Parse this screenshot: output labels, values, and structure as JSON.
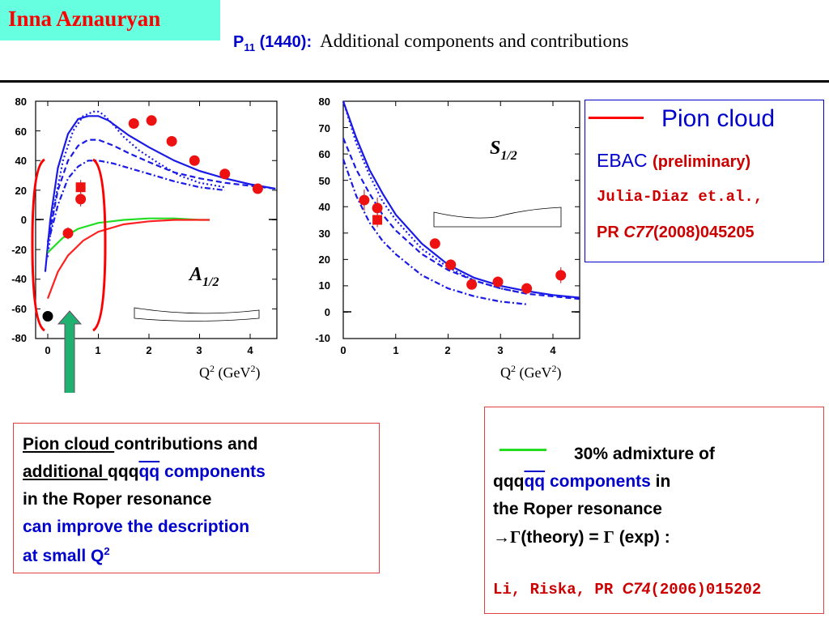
{
  "header": {
    "author": "Inna Aznauryan",
    "state": "P",
    "state_sub": "11",
    "state_mass": " (1440):",
    "title": "Additional components and contributions"
  },
  "colors": {
    "accent_cyan": "#66ffe0",
    "red": "#ff0000",
    "blue": "#0000cc",
    "green": "#22dd22",
    "rule": "#000000"
  },
  "chart_data": [
    {
      "type": "line",
      "amplitude_label": "A",
      "amplitude_sub": "1/2",
      "xlabel": "Q",
      "xlabel_unit": "(GeV",
      "xlim": [
        -0.25,
        4.6
      ],
      "ylim": [
        -80,
        80
      ],
      "xticks": [
        "0",
        "1",
        "2",
        "3",
        "4"
      ],
      "yticks": [
        "80",
        "60",
        "40",
        "20",
        "0",
        "-20",
        "-40",
        "-60",
        "-80"
      ],
      "series": [
        {
          "name": "Pion cloud",
          "style": "solid",
          "color": "#1a1ae6",
          "x": [
            -0.05,
            0.05,
            0.2,
            0.4,
            0.6,
            0.8,
            1.0,
            1.2,
            1.4,
            1.6,
            2.0,
            2.5,
            3.0,
            3.5,
            4.0,
            4.5
          ],
          "y": [
            -35,
            0,
            35,
            58,
            68,
            70,
            70,
            67,
            62,
            57,
            49,
            40,
            33,
            28,
            24,
            21
          ]
        },
        {
          "style": "dotted",
          "color": "#1a1ae6",
          "x": [
            0.0,
            0.1,
            0.3,
            0.5,
            0.7,
            0.9,
            1.0,
            1.1,
            1.3,
            1.5,
            1.8,
            2.2,
            2.6,
            3.0,
            3.5
          ],
          "y": [
            -25,
            5,
            40,
            60,
            70,
            73,
            73,
            71,
            64,
            56,
            47,
            38,
            30,
            25,
            22
          ]
        },
        {
          "style": "dashed",
          "color": "#1a1ae6",
          "x": [
            0.0,
            0.2,
            0.4,
            0.6,
            0.8,
            1.0,
            1.3,
            1.6,
            2.0,
            2.5,
            3.0,
            3.5,
            4.0,
            4.5
          ],
          "y": [
            -15,
            20,
            40,
            50,
            54,
            54,
            50,
            45,
            39,
            32,
            28,
            25,
            23,
            21
          ]
        },
        {
          "style": "dash-dot",
          "color": "#1a1ae6",
          "x": [
            0.05,
            0.2,
            0.4,
            0.6,
            0.8,
            1.0,
            1.3,
            1.6,
            2.0,
            2.5,
            3.0,
            3.5
          ],
          "y": [
            -10,
            10,
            28,
            36,
            40,
            40,
            38,
            35,
            31,
            26,
            22,
            20
          ]
        },
        {
          "style": "solid",
          "color": "#22dd22",
          "x": [
            0.0,
            0.3,
            0.6,
            1.0,
            1.5,
            2.0,
            2.5,
            3.0,
            3.2
          ],
          "y": [
            -22,
            -12,
            -6,
            -2,
            0,
            1,
            1,
            0,
            0
          ]
        },
        {
          "style": "solid",
          "color": "#ff2020",
          "x": [
            0.0,
            0.2,
            0.4,
            0.7,
            1.0,
            1.5,
            2.0,
            2.5,
            3.0,
            3.2
          ],
          "y": [
            -53,
            -35,
            -24,
            -14,
            -8,
            -3,
            -1,
            0,
            0,
            0
          ]
        }
      ],
      "data_points": {
        "circles": [
          {
            "x": 0.4,
            "y": -9,
            "err": 4
          },
          {
            "x": 0.65,
            "y": 14,
            "err": 5
          },
          {
            "x": 1.7,
            "y": 65
          },
          {
            "x": 2.05,
            "y": 67
          },
          {
            "x": 2.45,
            "y": 53
          },
          {
            "x": 2.9,
            "y": 40
          },
          {
            "x": 3.5,
            "y": 31
          },
          {
            "x": 4.15,
            "y": 21
          }
        ],
        "squares": [
          {
            "x": 0.65,
            "y": 22
          }
        ],
        "black": [
          {
            "x": 0.0,
            "y": -65
          }
        ]
      }
    },
    {
      "type": "line",
      "amplitude_label": "S",
      "amplitude_sub": "1/2",
      "xlabel": "Q",
      "xlabel_unit": "(GeV",
      "xlim": [
        0,
        4.5
      ],
      "ylim": [
        -10,
        80
      ],
      "xticks": [
        "0",
        "1",
        "2",
        "3",
        "4"
      ],
      "yticks": [
        "80",
        "70",
        "60",
        "50",
        "40",
        "30",
        "20",
        "10",
        "0",
        "-10"
      ],
      "series": [
        {
          "style": "solid",
          "color": "#1a1ae6",
          "x": [
            0.0,
            0.25,
            0.5,
            0.75,
            1.0,
            1.5,
            2.0,
            2.5,
            3.0,
            3.5,
            4.0,
            4.5
          ],
          "y": [
            80,
            66,
            54,
            45,
            37,
            26,
            18,
            13,
            10,
            8,
            6.5,
            5.5
          ]
        },
        {
          "style": "dotted",
          "color": "#1a1ae6",
          "x": [
            0.0,
            0.25,
            0.5,
            0.75,
            1.0,
            1.5,
            2.0,
            2.5,
            3.0,
            3.5
          ],
          "y": [
            80,
            64,
            52,
            42,
            35,
            24,
            17,
            12,
            9,
            7
          ]
        },
        {
          "style": "dashed",
          "color": "#1a1ae6",
          "x": [
            0.0,
            0.25,
            0.5,
            0.75,
            1.0,
            1.5,
            2.0,
            2.5,
            3.0,
            3.5,
            4.0,
            4.5
          ],
          "y": [
            66,
            54,
            45,
            37,
            31,
            22,
            16,
            12,
            9,
            7,
            6,
            5
          ]
        },
        {
          "style": "dash-dot",
          "color": "#1a1ae6",
          "x": [
            0.0,
            0.25,
            0.5,
            0.75,
            1.0,
            1.5,
            2.0,
            2.5,
            3.0,
            3.5
          ],
          "y": [
            58,
            44,
            34,
            27,
            22,
            14,
            9,
            6,
            4,
            3
          ]
        }
      ],
      "data_points": {
        "circles": [
          {
            "x": 0.4,
            "y": 42.5,
            "err": 4
          },
          {
            "x": 0.65,
            "y": 39.5,
            "err": 4
          },
          {
            "x": 1.75,
            "y": 26
          },
          {
            "x": 2.05,
            "y": 18
          },
          {
            "x": 2.45,
            "y": 10.5
          },
          {
            "x": 2.95,
            "y": 11.5
          },
          {
            "x": 3.5,
            "y": 9
          },
          {
            "x": 4.15,
            "y": 14,
            "err": 3
          }
        ],
        "squares": [
          {
            "x": 0.65,
            "y": 35
          }
        ],
        "black": []
      }
    }
  ],
  "legend": {
    "pion_cloud": "Pion cloud",
    "ebac": "EBAC",
    "preliminary": "(preliminary)",
    "authors": "Julia-Diaz et.al.,",
    "ref_prefix": "PR ",
    "ref_italic": "C77",
    "ref_rest": "(2008)045205"
  },
  "box_left": {
    "l1a": "Pion cloud ",
    "l1b": "contributions and",
    "l2a": "additional ",
    "l2b": " qqq",
    "l2c": "qq",
    "l2d": " components",
    "l3": "in the Roper resonance",
    "l4": "can improve  the description",
    "l5": "at small Q",
    "l5sup": "2"
  },
  "box_right": {
    "l1": "30% admixture of",
    "l2a": "qqq",
    "l2b": "qq",
    "l2c": " components",
    "l2d": " in",
    "l3": "the Roper resonance",
    "l4": "(theory) = ",
    "l4b": " (exp) :",
    "gamma": "Γ",
    "arrow": "→",
    "ref_prefix": "Li, Riska, PR ",
    "ref_italic": "C74",
    "ref_rest": "(2006)015202"
  }
}
